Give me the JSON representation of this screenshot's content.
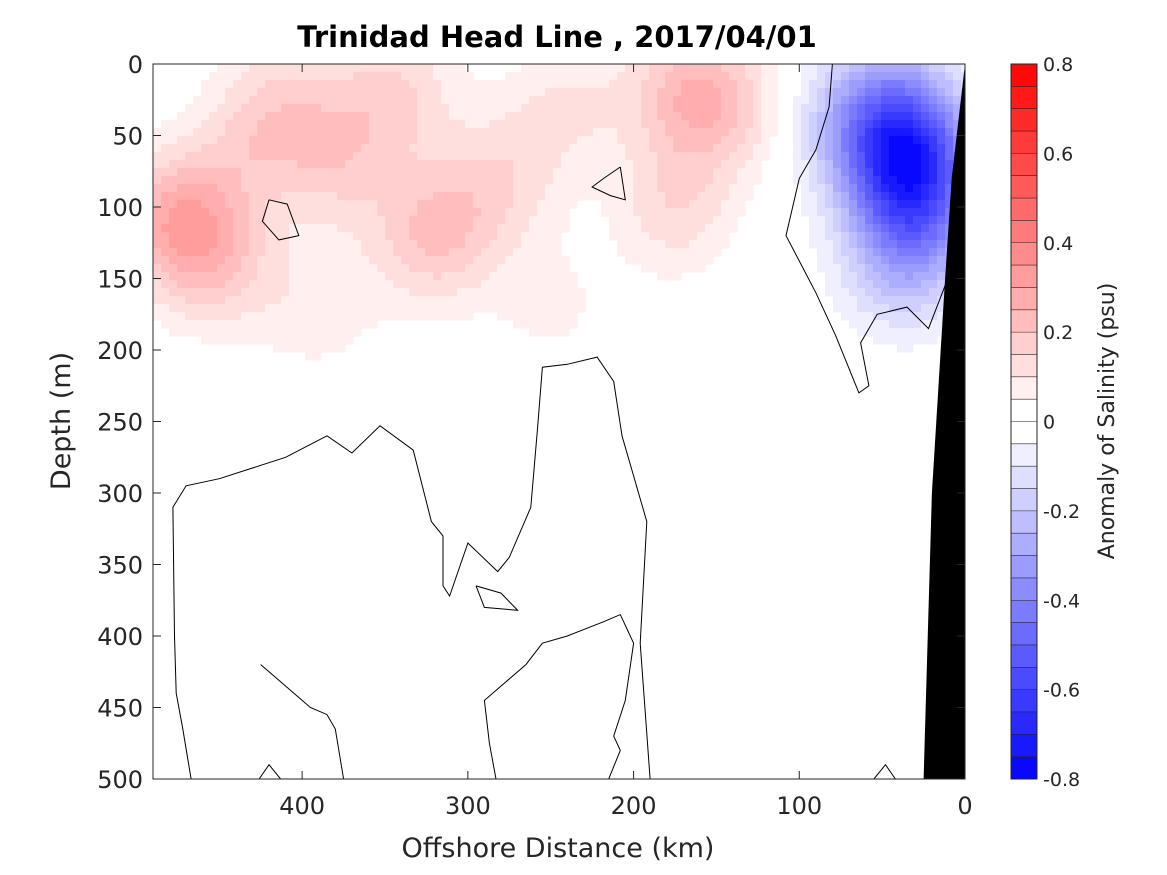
{
  "chart_data": {
    "type": "heatmap",
    "title": "Trinidad Head Line , 2017/04/01",
    "xlabel": "Offshore Distance (km)",
    "ylabel": "Depth (m)",
    "colorbar_label": "Anomaly of Salinity (psu)",
    "xlim": [
      490,
      0
    ],
    "ylim": [
      0,
      500
    ],
    "x_reversed": true,
    "y_reversed": true,
    "xticks": [
      400,
      300,
      200,
      100,
      0
    ],
    "xtick_labels": [
      "400",
      "300",
      "200",
      "100",
      "0"
    ],
    "yticks": [
      0,
      50,
      100,
      150,
      200,
      250,
      300,
      350,
      400,
      450,
      500
    ],
    "ytick_labels": [
      "0",
      "50",
      "100",
      "150",
      "200",
      "250",
      "300",
      "350",
      "400",
      "450",
      "500"
    ],
    "clim": [
      -0.8,
      0.8
    ],
    "colorbar_ticks": [
      0.8,
      0.6,
      0.4,
      0.2,
      0,
      -0.2,
      -0.4,
      -0.6,
      -0.8
    ],
    "colorbar_tick_labels": [
      "0.8",
      "0.6",
      "0.4",
      "0.2",
      "0",
      "-0.2",
      "-0.4",
      "-0.6",
      "-0.8"
    ],
    "colorbar_levels": 32,
    "colormap": {
      "positive": "#ff0000",
      "zero": "#ffffff",
      "negative": "#0000ff"
    },
    "contour_line_level": 0,
    "bathymetry_color": "#000000",
    "grid": false,
    "anomaly_field": [
      {
        "x": 475,
        "depth": 110,
        "value": 0.26
      },
      {
        "x": 450,
        "depth": 140,
        "value": 0.14
      },
      {
        "x": 430,
        "depth": 60,
        "value": 0.12
      },
      {
        "x": 380,
        "depth": 70,
        "value": 0.14
      },
      {
        "x": 410,
        "depth": 20,
        "value": 0.1
      },
      {
        "x": 345,
        "depth": 20,
        "value": 0.15
      },
      {
        "x": 320,
        "depth": 120,
        "value": 0.2
      },
      {
        "x": 280,
        "depth": 80,
        "value": 0.12
      },
      {
        "x": 240,
        "depth": 30,
        "value": 0.1
      },
      {
        "x": 165,
        "depth": 20,
        "value": 0.22
      },
      {
        "x": 175,
        "depth": 100,
        "value": 0.14
      },
      {
        "x": 135,
        "depth": 40,
        "value": 0.1
      },
      {
        "x": 390,
        "depth": 170,
        "value": 0.08
      },
      {
        "x": 250,
        "depth": 170,
        "value": 0.06
      },
      {
        "x": 80,
        "depth": 260,
        "value": 0.04
      },
      {
        "x": 160,
        "depth": 410,
        "value": 0.03
      },
      {
        "x": 415,
        "depth": 100,
        "value": -0.02
      },
      {
        "x": 215,
        "depth": 80,
        "value": -0.01
      },
      {
        "x": 135,
        "depth": 75,
        "value": -0.02
      },
      {
        "x": 35,
        "depth": 65,
        "value": -0.55
      },
      {
        "x": 45,
        "depth": 25,
        "value": -0.2
      },
      {
        "x": 75,
        "depth": 40,
        "value": -0.12
      },
      {
        "x": 30,
        "depth": 110,
        "value": -0.3
      },
      {
        "x": 40,
        "depth": 150,
        "value": -0.12
      },
      {
        "x": 300,
        "depth": 380,
        "value": 0.0
      }
    ]
  }
}
